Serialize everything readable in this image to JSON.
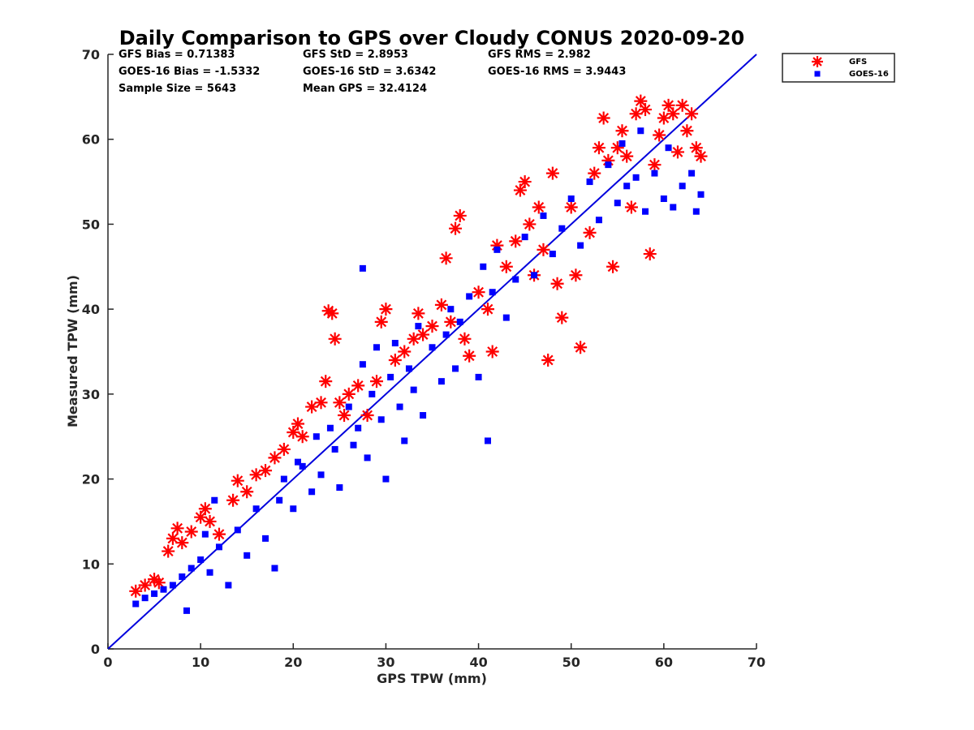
{
  "chart_data": {
    "type": "scatter",
    "title": "Daily Comparison to GPS over Cloudy CONUS 2020-09-20",
    "xlabel": "GPS TPW (mm)",
    "ylabel": "Measured TPW (mm)",
    "xlim": [
      0,
      70
    ],
    "ylim": [
      0,
      70
    ],
    "xticks": [
      "0",
      "10",
      "20",
      "30",
      "40",
      "50",
      "60",
      "70"
    ],
    "yticks": [
      "0",
      "10",
      "20",
      "30",
      "40",
      "50",
      "60",
      "70"
    ],
    "grid": false,
    "legend_position": "top-right outside plot",
    "stats": [
      "GFS Bias = 0.71383",
      "GFS StD = 2.8953",
      "GFS RMS = 2.982",
      "GOES-16 Bias = -1.5332",
      "GOES-16 StD = 3.6342",
      "GOES-16 RMS = 3.9443",
      "Sample Size = 5643",
      "Mean GPS = 32.4124"
    ],
    "reference_line": {
      "x": [
        0,
        70
      ],
      "y": [
        0,
        70
      ],
      "color": "#0000dd"
    },
    "series": [
      {
        "name": "GFS",
        "marker": "asterisk",
        "color": "#ff0000",
        "points": [
          [
            3,
            6.8
          ],
          [
            4,
            7.5
          ],
          [
            5,
            8.2
          ],
          [
            5.5,
            7.8
          ],
          [
            6.5,
            11.5
          ],
          [
            7,
            13
          ],
          [
            7.5,
            14.2
          ],
          [
            8,
            12.5
          ],
          [
            9,
            13.8
          ],
          [
            10,
            15.5
          ],
          [
            10.5,
            16.5
          ],
          [
            11,
            15
          ],
          [
            12,
            13.5
          ],
          [
            13.5,
            17.5
          ],
          [
            14,
            19.8
          ],
          [
            15,
            18.5
          ],
          [
            16,
            20.5
          ],
          [
            17,
            21
          ],
          [
            18,
            22.5
          ],
          [
            19,
            23.5
          ],
          [
            20,
            25.5
          ],
          [
            20.5,
            26.5
          ],
          [
            21,
            25
          ],
          [
            22,
            28.5
          ],
          [
            23,
            29
          ],
          [
            23.5,
            31.5
          ],
          [
            23.8,
            39.8
          ],
          [
            24.2,
            39.5
          ],
          [
            24.5,
            36.5
          ],
          [
            25,
            29
          ],
          [
            25.5,
            27.5
          ],
          [
            26,
            30
          ],
          [
            27,
            31
          ],
          [
            28,
            27.5
          ],
          [
            29,
            31.5
          ],
          [
            29.5,
            38.5
          ],
          [
            30,
            40
          ],
          [
            31,
            34
          ],
          [
            32,
            35
          ],
          [
            33,
            36.5
          ],
          [
            33.5,
            39.5
          ],
          [
            34,
            37
          ],
          [
            35,
            38
          ],
          [
            36,
            40.5
          ],
          [
            36.5,
            46
          ],
          [
            37,
            38.5
          ],
          [
            37.5,
            49.5
          ],
          [
            38,
            51
          ],
          [
            38.5,
            36.5
          ],
          [
            39,
            34.5
          ],
          [
            40,
            42
          ],
          [
            41,
            40
          ],
          [
            41.5,
            35
          ],
          [
            42,
            47.5
          ],
          [
            43,
            45
          ],
          [
            44,
            48
          ],
          [
            44.5,
            54
          ],
          [
            45,
            55
          ],
          [
            45.5,
            50
          ],
          [
            46,
            44
          ],
          [
            46.5,
            52
          ],
          [
            47,
            47
          ],
          [
            47.5,
            34
          ],
          [
            48,
            56
          ],
          [
            48.5,
            43
          ],
          [
            49,
            39
          ],
          [
            50,
            52
          ],
          [
            50.5,
            44
          ],
          [
            51,
            35.5
          ],
          [
            52,
            49
          ],
          [
            52.5,
            56
          ],
          [
            53,
            59
          ],
          [
            53.5,
            62.5
          ],
          [
            54,
            57.5
          ],
          [
            54.5,
            45
          ],
          [
            55,
            59
          ],
          [
            55.5,
            61
          ],
          [
            56,
            58
          ],
          [
            56.5,
            52
          ],
          [
            57,
            63
          ],
          [
            57.5,
            64.5
          ],
          [
            58,
            63.5
          ],
          [
            58.5,
            46.5
          ],
          [
            59,
            57
          ],
          [
            59.5,
            60.5
          ],
          [
            60,
            62.5
          ],
          [
            60.5,
            64
          ],
          [
            61,
            63
          ],
          [
            61.5,
            58.5
          ],
          [
            62,
            64
          ],
          [
            62.5,
            61
          ],
          [
            63,
            63
          ],
          [
            63.5,
            59
          ],
          [
            64,
            58
          ]
        ]
      },
      {
        "name": "GOES-16",
        "marker": "square",
        "color": "#0000ff",
        "points": [
          [
            3,
            5.3
          ],
          [
            4,
            6
          ],
          [
            5,
            6.5
          ],
          [
            6,
            7
          ],
          [
            7,
            7.5
          ],
          [
            8,
            8.5
          ],
          [
            8.5,
            4.5
          ],
          [
            9,
            9.5
          ],
          [
            10,
            10.5
          ],
          [
            10.5,
            13.5
          ],
          [
            11,
            9
          ],
          [
            11.5,
            17.5
          ],
          [
            12,
            12
          ],
          [
            13,
            7.5
          ],
          [
            14,
            14
          ],
          [
            15,
            11
          ],
          [
            16,
            16.5
          ],
          [
            17,
            13
          ],
          [
            18,
            9.5
          ],
          [
            18.5,
            17.5
          ],
          [
            19,
            20
          ],
          [
            20,
            16.5
          ],
          [
            20.5,
            22
          ],
          [
            21,
            21.5
          ],
          [
            22,
            18.5
          ],
          [
            22.5,
            25
          ],
          [
            23,
            20.5
          ],
          [
            24,
            26
          ],
          [
            24.5,
            23.5
          ],
          [
            25,
            19
          ],
          [
            26,
            28.5
          ],
          [
            26.5,
            24
          ],
          [
            27,
            26
          ],
          [
            27.5,
            33.5
          ],
          [
            28,
            22.5
          ],
          [
            28.5,
            30
          ],
          [
            29,
            35.5
          ],
          [
            29.5,
            27
          ],
          [
            30,
            20
          ],
          [
            30.5,
            32
          ],
          [
            31,
            36
          ],
          [
            31.5,
            28.5
          ],
          [
            32,
            24.5
          ],
          [
            32.5,
            33
          ],
          [
            33,
            30.5
          ],
          [
            33.5,
            38
          ],
          [
            34,
            27.5
          ],
          [
            35,
            35.5
          ],
          [
            36,
            31.5
          ],
          [
            36.5,
            37
          ],
          [
            37,
            40
          ],
          [
            37.5,
            33
          ],
          [
            38,
            38.5
          ],
          [
            39,
            41.5
          ],
          [
            40,
            32
          ],
          [
            40.5,
            45
          ],
          [
            41,
            24.5
          ],
          [
            41.5,
            42
          ],
          [
            42,
            47
          ],
          [
            43,
            39
          ],
          [
            44,
            43.5
          ],
          [
            45,
            48.5
          ],
          [
            46,
            44
          ],
          [
            47,
            51
          ],
          [
            48,
            46.5
          ],
          [
            49,
            49.5
          ],
          [
            50,
            53
          ],
          [
            51,
            47.5
          ],
          [
            52,
            55
          ],
          [
            53,
            50.5
          ],
          [
            54,
            57
          ],
          [
            55,
            52.5
          ],
          [
            55.5,
            59.5
          ],
          [
            56,
            54.5
          ],
          [
            57,
            55.5
          ],
          [
            57.5,
            61
          ],
          [
            58,
            51.5
          ],
          [
            59,
            56
          ],
          [
            60,
            53
          ],
          [
            60.5,
            59
          ],
          [
            61,
            52
          ],
          [
            62,
            54.5
          ],
          [
            63,
            56
          ],
          [
            63.5,
            51.5
          ],
          [
            64,
            53.5
          ],
          [
            27.5,
            44.8
          ]
        ]
      }
    ]
  }
}
